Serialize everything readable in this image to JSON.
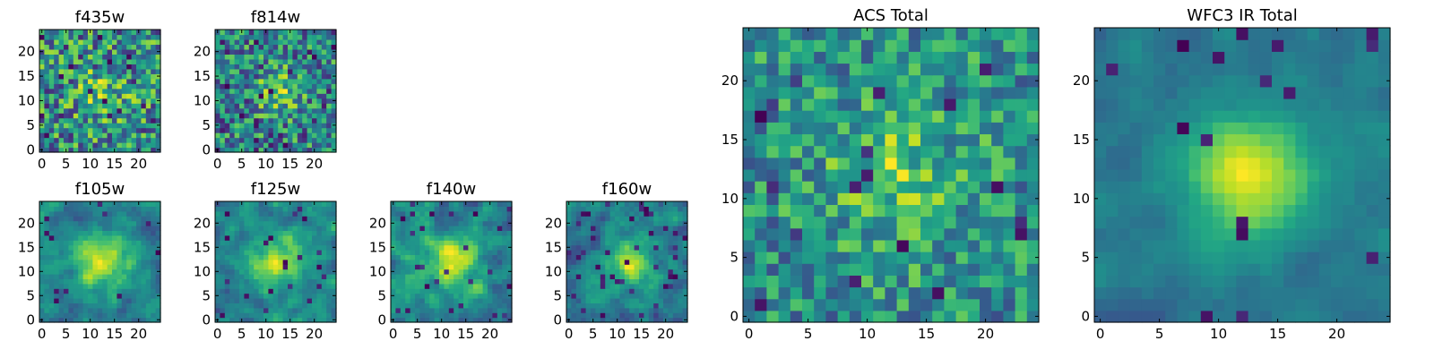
{
  "figure": {
    "colormap": "viridis",
    "grid_size": 25,
    "background": "#ffffff"
  },
  "chart_data": [
    {
      "id": "f435w",
      "type": "heatmap",
      "title": "f435w",
      "xlim": [
        0,
        25
      ],
      "ylim": [
        0,
        25
      ],
      "xticks": [
        "0",
        "5",
        "10",
        "15",
        "20"
      ],
      "yticks": [
        "0",
        "5",
        "10",
        "15",
        "20"
      ],
      "pattern": "noise",
      "seed": 11,
      "peak": 0.2,
      "width": 4,
      "noise": 0.75,
      "dark_fraction": 0.06
    },
    {
      "id": "f814w",
      "type": "heatmap",
      "title": "f814w",
      "xlim": [
        0,
        25
      ],
      "ylim": [
        0,
        25
      ],
      "xticks": [
        "0",
        "5",
        "10",
        "15",
        "20"
      ],
      "yticks": [
        "0",
        "5",
        "10",
        "15",
        "20"
      ],
      "pattern": "noise",
      "seed": 23,
      "peak": 0.35,
      "width": 3,
      "noise": 0.7,
      "dark_fraction": 0.05
    },
    {
      "id": "f105w",
      "type": "heatmap",
      "title": "f105w",
      "xlim": [
        0,
        25
      ],
      "ylim": [
        0,
        25
      ],
      "xticks": [
        "0",
        "5",
        "10",
        "15",
        "20"
      ],
      "yticks": [
        "0",
        "5",
        "10",
        "15",
        "20"
      ],
      "pattern": "smooth",
      "seed": 37,
      "peak": 0.6,
      "width": 4,
      "noise": 0.45,
      "dark_fraction": 0.02
    },
    {
      "id": "f125w",
      "type": "heatmap",
      "title": "f125w",
      "xlim": [
        0,
        25
      ],
      "ylim": [
        0,
        25
      ],
      "xticks": [
        "0",
        "5",
        "10",
        "15",
        "20"
      ],
      "yticks": [
        "0",
        "5",
        "10",
        "15",
        "20"
      ],
      "pattern": "smooth",
      "seed": 41,
      "peak": 0.5,
      "width": 4,
      "noise": 0.5,
      "dark_fraction": 0.04
    },
    {
      "id": "f140w",
      "type": "heatmap",
      "title": "f140w",
      "xlim": [
        0,
        25
      ],
      "ylim": [
        0,
        25
      ],
      "xticks": [
        "0",
        "5",
        "10",
        "15",
        "20"
      ],
      "yticks": [
        "0",
        "5",
        "10",
        "15",
        "20"
      ],
      "pattern": "smooth",
      "seed": 53,
      "peak": 0.5,
      "width": 3.5,
      "noise": 0.55,
      "dark_fraction": 0.05
    },
    {
      "id": "f160w",
      "type": "heatmap",
      "title": "f160w",
      "xlim": [
        0,
        25
      ],
      "ylim": [
        0,
        25
      ],
      "xticks": [
        "0",
        "5",
        "10",
        "15",
        "20"
      ],
      "yticks": [
        "0",
        "5",
        "10",
        "15",
        "20"
      ],
      "pattern": "smooth",
      "seed": 67,
      "peak": 0.55,
      "width": 3.5,
      "noise": 0.55,
      "dark_fraction": 0.05
    },
    {
      "id": "acs_total",
      "type": "heatmap",
      "title": "ACS Total",
      "xlim": [
        0,
        25
      ],
      "ylim": [
        0,
        25
      ],
      "xticks": [
        "0",
        "5",
        "10",
        "15",
        "20"
      ],
      "yticks": [
        "0",
        "5",
        "10",
        "15",
        "20"
      ],
      "pattern": "noise",
      "seed": 79,
      "peak": 0.25,
      "width": 4,
      "noise": 0.55,
      "dark_fraction": 0.04
    },
    {
      "id": "wfc3_ir_total",
      "type": "heatmap",
      "title": "WFC3 IR Total",
      "xlim": [
        0,
        25
      ],
      "ylim": [
        0,
        25
      ],
      "xticks": [
        "0",
        "5",
        "10",
        "15",
        "20"
      ],
      "yticks": [
        "0",
        "5",
        "10",
        "15",
        "20"
      ],
      "pattern": "smooth",
      "seed": 97,
      "peak": 0.75,
      "width": 3.5,
      "noise": 0.3,
      "dark_fraction": 0.03
    }
  ]
}
